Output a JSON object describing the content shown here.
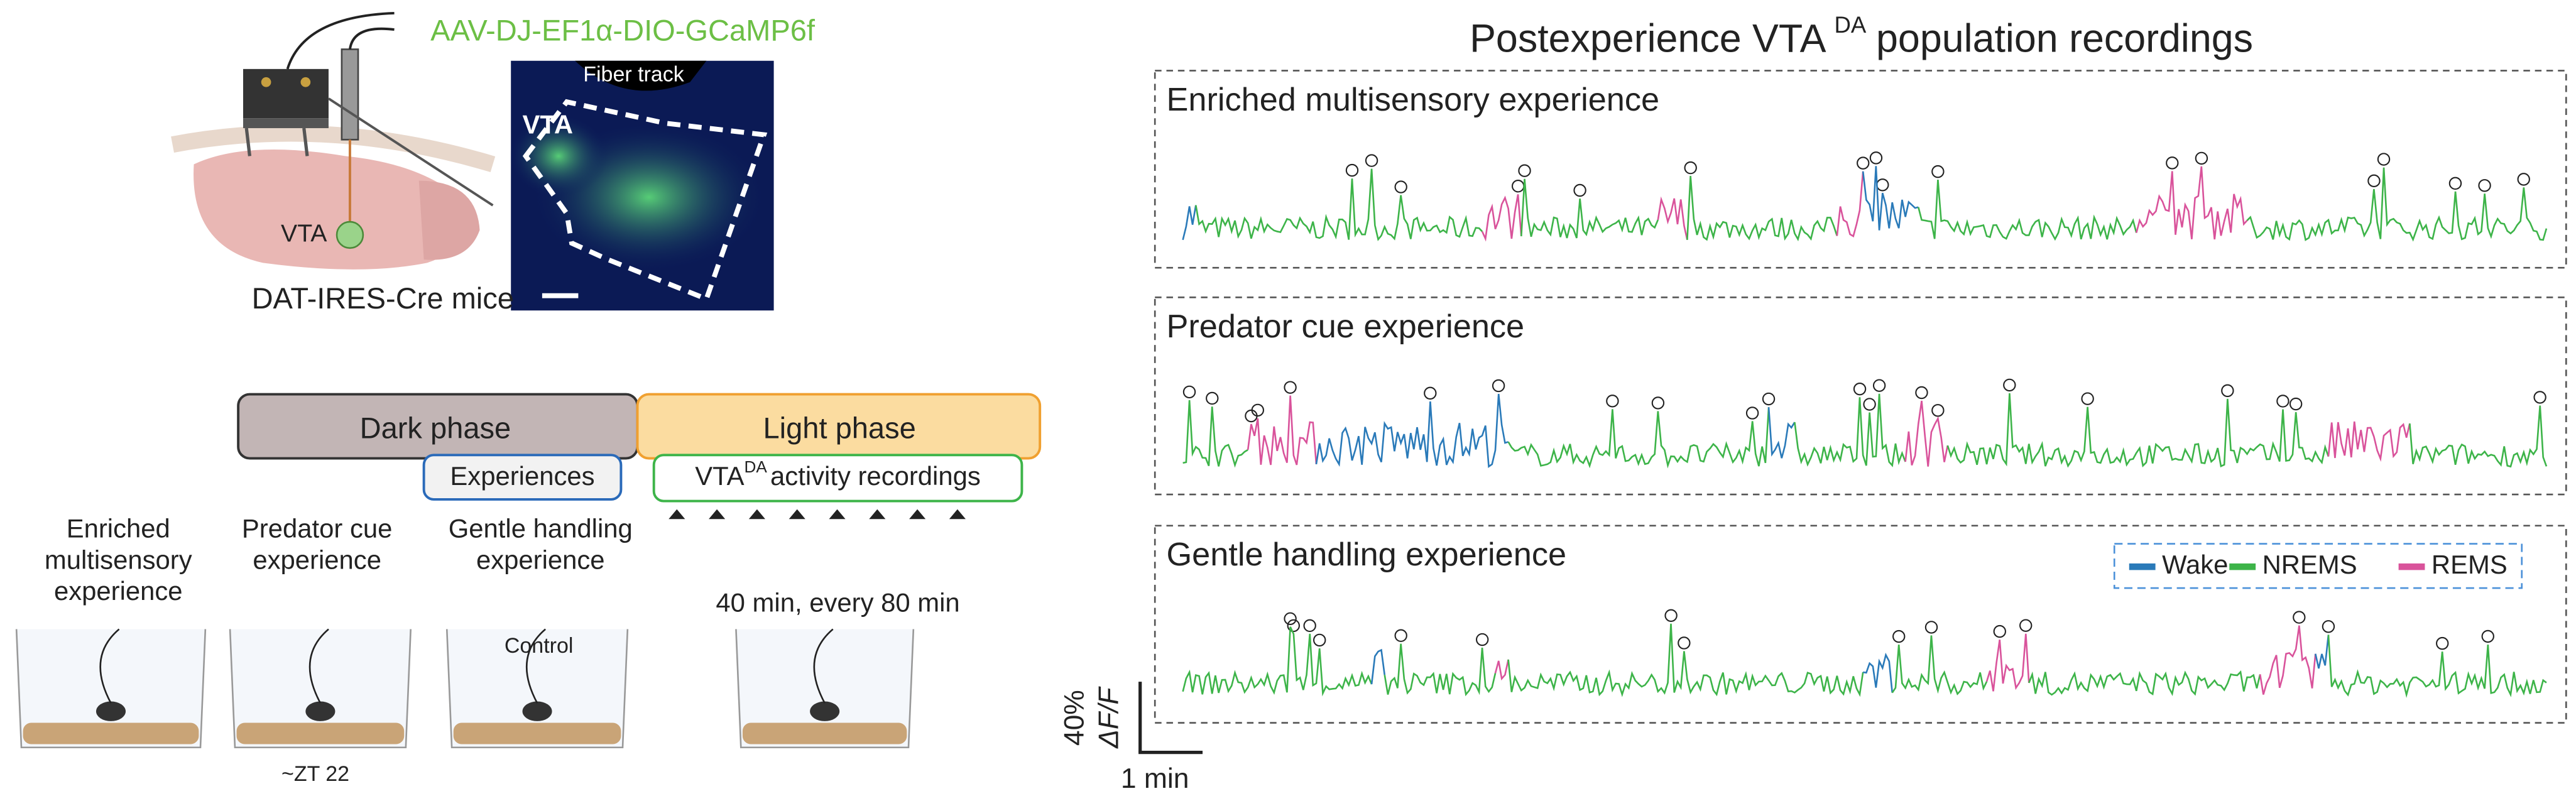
{
  "left": {
    "virus": "AAV-DJ-EF1α-DIO-GCaMP6f",
    "brain_region": "VTA",
    "fiber": "Fiber track",
    "histology_region": "VTA",
    "mouse": "DAT-IRES-Cre mice",
    "timeline": {
      "dark": "Dark phase",
      "light": "Light phase",
      "experiences": "Experiences",
      "recordings_prefix": "VTA",
      "recordings_sup": "DA",
      "recordings_suffix": "activity recordings"
    },
    "conditions": [
      {
        "lines": [
          "Enriched",
          "multisensory",
          "experience"
        ]
      },
      {
        "lines": [
          "Predator cue",
          "experience"
        ]
      },
      {
        "lines": [
          "Gentle handling",
          "experience"
        ]
      },
      {
        "lines": [
          "40 min, every 80 min"
        ]
      }
    ],
    "zt": "~ZT 22",
    "control": "Control"
  },
  "right": {
    "title_prefix": "Postexperience VTA",
    "title_sup": "DA",
    "title_suffix": "population recordings",
    "panels": [
      "Enriched multisensory experience",
      "Predator cue experience",
      "Gentle handling experience"
    ],
    "legend": [
      {
        "name": "Wake",
        "color": "#2a7ab9"
      },
      {
        "name": "NREMS",
        "color": "#3db449"
      },
      {
        "name": "REMS",
        "color": "#d9539b"
      }
    ],
    "scale": {
      "y": "40%",
      "y_unit": "ΔF/F",
      "x": "1 min"
    }
  }
}
